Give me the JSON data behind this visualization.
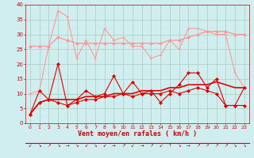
{
  "x": [
    0,
    1,
    2,
    3,
    4,
    5,
    6,
    7,
    8,
    9,
    10,
    11,
    12,
    13,
    14,
    15,
    16,
    17,
    18,
    19,
    20,
    21,
    22,
    23
  ],
  "series": [
    {
      "name": "rafales_max",
      "color": "#ff9999",
      "linewidth": 0.8,
      "marker": "+",
      "markersize": 3,
      "values": [
        10,
        11,
        26,
        38,
        36,
        22,
        28,
        22,
        32,
        28,
        29,
        26,
        26,
        22,
        23,
        28,
        25,
        32,
        32,
        31,
        30,
        30,
        17,
        12
      ]
    },
    {
      "name": "rafales_moy",
      "color": "#ff9999",
      "linewidth": 1.0,
      "marker": "D",
      "markersize": 2,
      "values": [
        26,
        26,
        26,
        29,
        28,
        27,
        27,
        27,
        27,
        27,
        27,
        27,
        27,
        27,
        27,
        28,
        28,
        29,
        30,
        31,
        31,
        31,
        30,
        30
      ]
    },
    {
      "name": "vent_max",
      "color": "#dd0000",
      "linewidth": 0.8,
      "marker": "D",
      "markersize": 2,
      "values": [
        3,
        11,
        8,
        20,
        6,
        8,
        11,
        9,
        10,
        16,
        10,
        14,
        10,
        11,
        7,
        10,
        13,
        17,
        17,
        12,
        15,
        6,
        6,
        12
      ]
    },
    {
      "name": "vent_moy",
      "color": "#dd0000",
      "linewidth": 1.2,
      "marker": null,
      "markersize": 0,
      "values": [
        3,
        7,
        8,
        8,
        8,
        8,
        9,
        9,
        9,
        10,
        10,
        10,
        11,
        11,
        11,
        12,
        12,
        13,
        13,
        13,
        14,
        13,
        12,
        12
      ]
    },
    {
      "name": "vent_min",
      "color": "#dd0000",
      "linewidth": 0.8,
      "marker": "D",
      "markersize": 2,
      "values": [
        3,
        7,
        8,
        7,
        6,
        7,
        8,
        8,
        9,
        9,
        10,
        9,
        10,
        10,
        10,
        11,
        10,
        11,
        12,
        11,
        10,
        6,
        6,
        6
      ]
    }
  ],
  "xlabel": "Vent moyen/en rafales ( km/h )",
  "xlim": [
    -0.5,
    23.5
  ],
  "ylim": [
    0,
    40
  ],
  "yticks": [
    0,
    5,
    10,
    15,
    20,
    25,
    30,
    35,
    40
  ],
  "xticks": [
    0,
    1,
    2,
    3,
    4,
    5,
    6,
    7,
    8,
    9,
    10,
    11,
    12,
    13,
    14,
    15,
    16,
    17,
    18,
    19,
    20,
    21,
    22,
    23
  ],
  "bg_color": "#d0eef0",
  "grid_color": "#aaccbb",
  "xlabel_color": "#cc0000",
  "tick_color": "#cc0000",
  "spine_color": "#cc0000"
}
